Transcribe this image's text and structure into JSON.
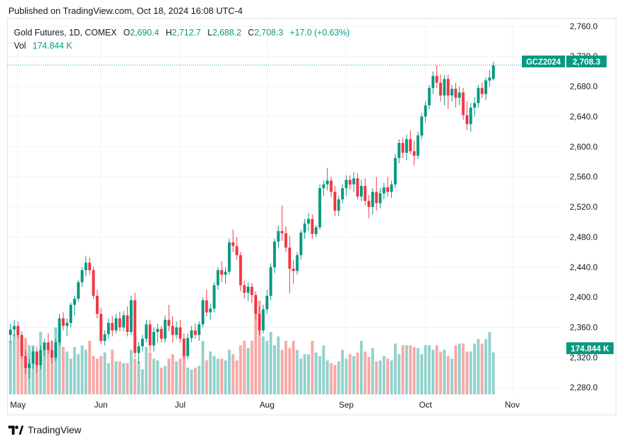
{
  "published": "Published on TradingView.com, Oct 18, 2024 16:08 UTC-4",
  "legend": {
    "symbol": "Gold Futures, 1D, COMEX",
    "o_label": "O",
    "o": "2,690.4",
    "h_label": "H",
    "h": "2,712.7",
    "l_label": "L",
    "l": "2,688.2",
    "c_label": "C",
    "c": "2,708.3",
    "change": "+17.0 (+0.63%)",
    "vol_label": "Vol",
    "vol": "174.844 K"
  },
  "price_tag": {
    "ticker": "GCZ2024",
    "price": "2,708.3"
  },
  "volume_tag": "174.844 K",
  "footer": {
    "brand": "TradingView",
    "icon": "tradingview-logo-icon"
  },
  "colors": {
    "up": "#089981",
    "down": "#f23645",
    "vol_up": "#92d2cc",
    "vol_down": "#f7a9a7",
    "grid": "#f0f3fa"
  },
  "chart_data": {
    "type": "candlestick",
    "title": "Gold Futures, 1D, COMEX",
    "y_ticks": [
      "2,760.0",
      "2,720.0",
      "2,680.0",
      "2,640.0",
      "2,600.0",
      "2,560.0",
      "2,520.0",
      "2,480.0",
      "2,440.0",
      "2,400.0",
      "2,360.0",
      "2,320.0",
      "2,280.0"
    ],
    "y_tick_values": [
      2760,
      2720,
      2680,
      2640,
      2600,
      2560,
      2520,
      2480,
      2440,
      2400,
      2360,
      2320,
      2280
    ],
    "x_labels": [
      {
        "label": "May",
        "index": 2
      },
      {
        "label": "Jun",
        "index": 24
      },
      {
        "label": "Jul",
        "index": 45
      },
      {
        "label": "Aug",
        "index": 68
      },
      {
        "label": "Sep",
        "index": 89
      },
      {
        "label": "Oct",
        "index": 110
      },
      {
        "label": "Nov",
        "index": 133
      }
    ],
    "ylim": [
      2271,
      2770
    ],
    "last_price": 2708.3,
    "volume_max": 174.844,
    "candles": [
      [
        2350,
        2365,
        2340,
        2357
      ],
      [
        2357,
        2370,
        2348,
        2362
      ],
      [
        2362,
        2368,
        2346,
        2350
      ],
      [
        2350,
        2355,
        2318,
        2322
      ],
      [
        2322,
        2330,
        2298,
        2306
      ],
      [
        2306,
        2318,
        2292,
        2312
      ],
      [
        2312,
        2334,
        2305,
        2328
      ],
      [
        2328,
        2335,
        2300,
        2310
      ],
      [
        2310,
        2336,
        2304,
        2330
      ],
      [
        2330,
        2345,
        2322,
        2340
      ],
      [
        2340,
        2352,
        2325,
        2330
      ],
      [
        2330,
        2343,
        2312,
        2320
      ],
      [
        2320,
        2345,
        2315,
        2340
      ],
      [
        2340,
        2378,
        2336,
        2372
      ],
      [
        2372,
        2380,
        2356,
        2362
      ],
      [
        2362,
        2372,
        2349,
        2366
      ],
      [
        2366,
        2393,
        2360,
        2390
      ],
      [
        2390,
        2402,
        2376,
        2398
      ],
      [
        2398,
        2423,
        2394,
        2420
      ],
      [
        2420,
        2440,
        2414,
        2436
      ],
      [
        2436,
        2455,
        2428,
        2446
      ],
      [
        2446,
        2453,
        2430,
        2436
      ],
      [
        2436,
        2440,
        2398,
        2402
      ],
      [
        2402,
        2410,
        2372,
        2378
      ],
      [
        2378,
        2386,
        2338,
        2342
      ],
      [
        2342,
        2356,
        2336,
        2351
      ],
      [
        2351,
        2372,
        2345,
        2366
      ],
      [
        2366,
        2375,
        2348,
        2356
      ],
      [
        2356,
        2378,
        2352,
        2372
      ],
      [
        2372,
        2381,
        2355,
        2360
      ],
      [
        2360,
        2382,
        2355,
        2376
      ],
      [
        2376,
        2388,
        2348,
        2354
      ],
      [
        2354,
        2402,
        2350,
        2396
      ],
      [
        2396,
        2406,
        2320,
        2326
      ],
      [
        2326,
        2340,
        2312,
        2335
      ],
      [
        2335,
        2350,
        2328,
        2345
      ],
      [
        2345,
        2370,
        2340,
        2364
      ],
      [
        2364,
        2370,
        2328,
        2336
      ],
      [
        2336,
        2360,
        2328,
        2354
      ],
      [
        2354,
        2365,
        2340,
        2358
      ],
      [
        2358,
        2362,
        2340,
        2345
      ],
      [
        2345,
        2376,
        2340,
        2370
      ],
      [
        2370,
        2390,
        2355,
        2362
      ],
      [
        2362,
        2375,
        2340,
        2350
      ],
      [
        2350,
        2368,
        2345,
        2360
      ],
      [
        2360,
        2370,
        2340,
        2345
      ],
      [
        2345,
        2352,
        2318,
        2322
      ],
      [
        2322,
        2352,
        2318,
        2346
      ],
      [
        2346,
        2362,
        2340,
        2356
      ],
      [
        2356,
        2365,
        2345,
        2350
      ],
      [
        2350,
        2368,
        2342,
        2364
      ],
      [
        2364,
        2400,
        2360,
        2396
      ],
      [
        2396,
        2410,
        2375,
        2380
      ],
      [
        2380,
        2392,
        2370,
        2385
      ],
      [
        2385,
        2420,
        2380,
        2416
      ],
      [
        2416,
        2440,
        2410,
        2436
      ],
      [
        2436,
        2448,
        2420,
        2430
      ],
      [
        2430,
        2440,
        2418,
        2434
      ],
      [
        2434,
        2478,
        2430,
        2473
      ],
      [
        2473,
        2490,
        2460,
        2468
      ],
      [
        2468,
        2480,
        2450,
        2456
      ],
      [
        2456,
        2460,
        2408,
        2416
      ],
      [
        2416,
        2422,
        2398,
        2406
      ],
      [
        2406,
        2420,
        2395,
        2414
      ],
      [
        2414,
        2419,
        2392,
        2403
      ],
      [
        2403,
        2408,
        2370,
        2378
      ],
      [
        2378,
        2388,
        2350,
        2356
      ],
      [
        2356,
        2390,
        2352,
        2384
      ],
      [
        2384,
        2410,
        2378,
        2402
      ],
      [
        2402,
        2445,
        2396,
        2440
      ],
      [
        2440,
        2478,
        2432,
        2474
      ],
      [
        2474,
        2495,
        2465,
        2488
      ],
      [
        2488,
        2522,
        2475,
        2485
      ],
      [
        2485,
        2494,
        2460,
        2466
      ],
      [
        2466,
        2482,
        2405,
        2438
      ],
      [
        2438,
        2450,
        2418,
        2435
      ],
      [
        2435,
        2460,
        2430,
        2456
      ],
      [
        2456,
        2490,
        2450,
        2486
      ],
      [
        2486,
        2504,
        2478,
        2498
      ],
      [
        2498,
        2512,
        2488,
        2504
      ],
      [
        2504,
        2510,
        2478,
        2484
      ],
      [
        2484,
        2496,
        2480,
        2493
      ],
      [
        2493,
        2550,
        2490,
        2545
      ],
      [
        2545,
        2555,
        2535,
        2550
      ],
      [
        2550,
        2572,
        2542,
        2555
      ],
      [
        2555,
        2560,
        2533,
        2540
      ],
      [
        2540,
        2548,
        2508,
        2515
      ],
      [
        2515,
        2535,
        2508,
        2530
      ],
      [
        2530,
        2550,
        2525,
        2545
      ],
      [
        2545,
        2562,
        2535,
        2556
      ],
      [
        2556,
        2562,
        2543,
        2550
      ],
      [
        2550,
        2566,
        2540,
        2558
      ],
      [
        2558,
        2565,
        2530,
        2534
      ],
      [
        2534,
        2556,
        2528,
        2548
      ],
      [
        2548,
        2558,
        2522,
        2528
      ],
      [
        2528,
        2536,
        2505,
        2520
      ],
      [
        2520,
        2545,
        2510,
        2540
      ],
      [
        2540,
        2560,
        2515,
        2525
      ],
      [
        2525,
        2545,
        2518,
        2538
      ],
      [
        2538,
        2552,
        2530,
        2546
      ],
      [
        2546,
        2560,
        2534,
        2540
      ],
      [
        2540,
        2555,
        2532,
        2550
      ],
      [
        2550,
        2590,
        2545,
        2585
      ],
      [
        2585,
        2610,
        2578,
        2605
      ],
      [
        2605,
        2612,
        2585,
        2592
      ],
      [
        2592,
        2616,
        2582,
        2610
      ],
      [
        2610,
        2622,
        2590,
        2594
      ],
      [
        2594,
        2608,
        2575,
        2588
      ],
      [
        2588,
        2620,
        2584,
        2615
      ],
      [
        2615,
        2645,
        2610,
        2640
      ],
      [
        2640,
        2660,
        2632,
        2655
      ],
      [
        2655,
        2682,
        2650,
        2678
      ],
      [
        2678,
        2700,
        2670,
        2694
      ],
      [
        2694,
        2708,
        2678,
        2685
      ],
      [
        2685,
        2696,
        2660,
        2668
      ],
      [
        2668,
        2695,
        2655,
        2690
      ],
      [
        2690,
        2696,
        2650,
        2668
      ],
      [
        2668,
        2682,
        2660,
        2677
      ],
      [
        2677,
        2685,
        2652,
        2665
      ],
      [
        2665,
        2680,
        2655,
        2672
      ],
      [
        2672,
        2678,
        2636,
        2642
      ],
      [
        2642,
        2660,
        2622,
        2630
      ],
      [
        2630,
        2658,
        2620,
        2652
      ],
      [
        2652,
        2666,
        2640,
        2658
      ],
      [
        2658,
        2682,
        2652,
        2678
      ],
      [
        2678,
        2685,
        2665,
        2670
      ],
      [
        2670,
        2692,
        2662,
        2688
      ],
      [
        2688,
        2702,
        2680,
        2692
      ],
      [
        2690,
        2713,
        2688,
        2708
      ]
    ],
    "volumes": [
      60,
      68,
      75,
      57,
      63,
      55,
      55,
      48,
      70,
      55,
      50,
      60,
      75,
      70,
      53,
      48,
      40,
      53,
      45,
      55,
      50,
      60,
      43,
      40,
      43,
      47,
      35,
      50,
      37,
      37,
      35,
      35,
      50,
      40,
      37,
      28,
      53,
      47,
      40,
      38,
      30,
      32,
      40,
      45,
      37,
      40,
      45,
      30,
      28,
      30,
      32,
      60,
      38,
      48,
      43,
      40,
      40,
      38,
      50,
      45,
      38,
      55,
      60,
      52,
      60,
      90,
      105,
      65,
      60,
      70,
      55,
      65,
      50,
      60,
      52,
      60,
      50,
      40,
      45,
      45,
      60,
      47,
      43,
      55,
      38,
      35,
      33,
      37,
      50,
      40,
      45,
      43,
      47,
      60,
      48,
      42,
      52,
      37,
      38,
      43,
      40,
      38,
      57,
      45,
      55,
      55,
      55,
      53,
      52,
      45,
      55,
      55,
      50,
      55,
      48,
      50,
      43,
      40,
      55,
      57,
      57,
      48,
      48,
      57,
      62,
      57,
      62,
      70,
      47,
      55
    ]
  }
}
